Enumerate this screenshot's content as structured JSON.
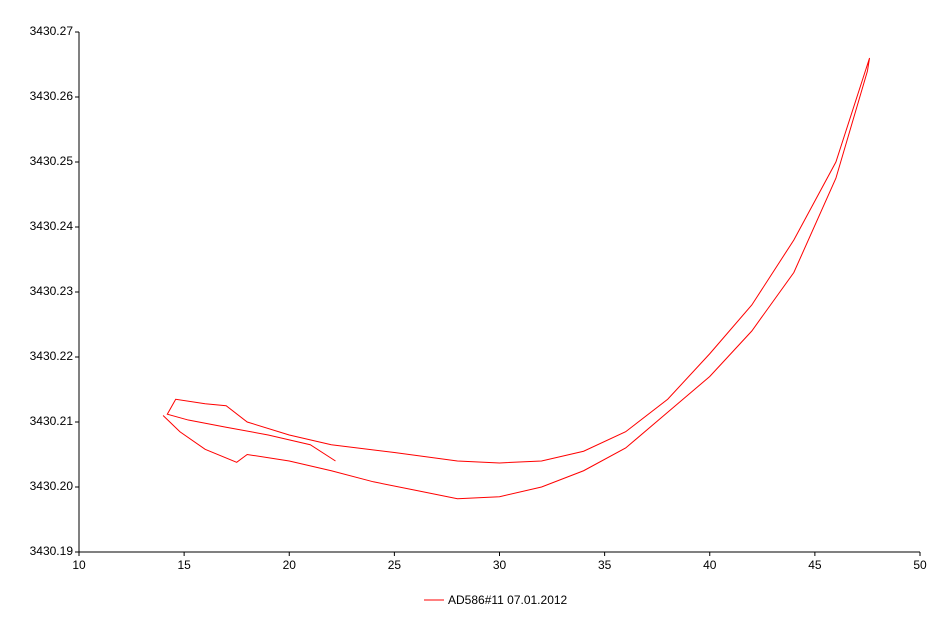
{
  "chart_data": {
    "type": "line",
    "x": [
      22.2,
      21,
      19,
      17,
      15.2,
      14.2,
      14.6,
      16,
      17,
      18,
      20,
      22,
      25,
      28,
      30,
      32,
      34,
      36,
      38,
      40,
      42,
      44,
      46,
      47.6,
      47.5,
      46,
      44,
      42,
      40,
      38,
      36,
      34,
      32,
      30,
      28,
      26,
      24,
      22,
      20,
      18,
      17.5,
      16,
      14.8,
      14
    ],
    "series": [
      {
        "name": "AD586#11 07.01.2012",
        "color": "#ff0000",
        "values": [
          3430.204,
          3430.2065,
          3430.208,
          3430.2092,
          3430.2103,
          3430.2112,
          3430.2135,
          3430.2128,
          3430.2125,
          3430.21,
          3430.208,
          3430.2065,
          3430.2053,
          3430.204,
          3430.2037,
          3430.204,
          3430.2055,
          3430.2085,
          3430.2135,
          3430.2205,
          3430.228,
          3430.238,
          3430.25,
          3430.266,
          3430.264,
          3430.2475,
          3430.233,
          3430.224,
          3430.217,
          3430.2115,
          3430.206,
          3430.2025,
          3430.2,
          3430.1985,
          3430.1982,
          3430.1995,
          3430.2008,
          3430.2025,
          3430.204,
          3430.205,
          3430.2038,
          3430.2058,
          3430.2085,
          3430.211
        ]
      }
    ],
    "xlim": [
      10,
      50
    ],
    "xticks": [
      10,
      15,
      20,
      25,
      30,
      35,
      40,
      45,
      50
    ],
    "ylim": [
      3430.19,
      3430.27
    ],
    "yticks": [
      3430.19,
      {
        "value": 3430.2,
        "label": "3430.20"
      },
      3430.21,
      3430.22,
      3430.23,
      3430.24,
      3430.25,
      3430.26,
      3430.27
    ],
    "grid": false,
    "legend": "bottom"
  }
}
